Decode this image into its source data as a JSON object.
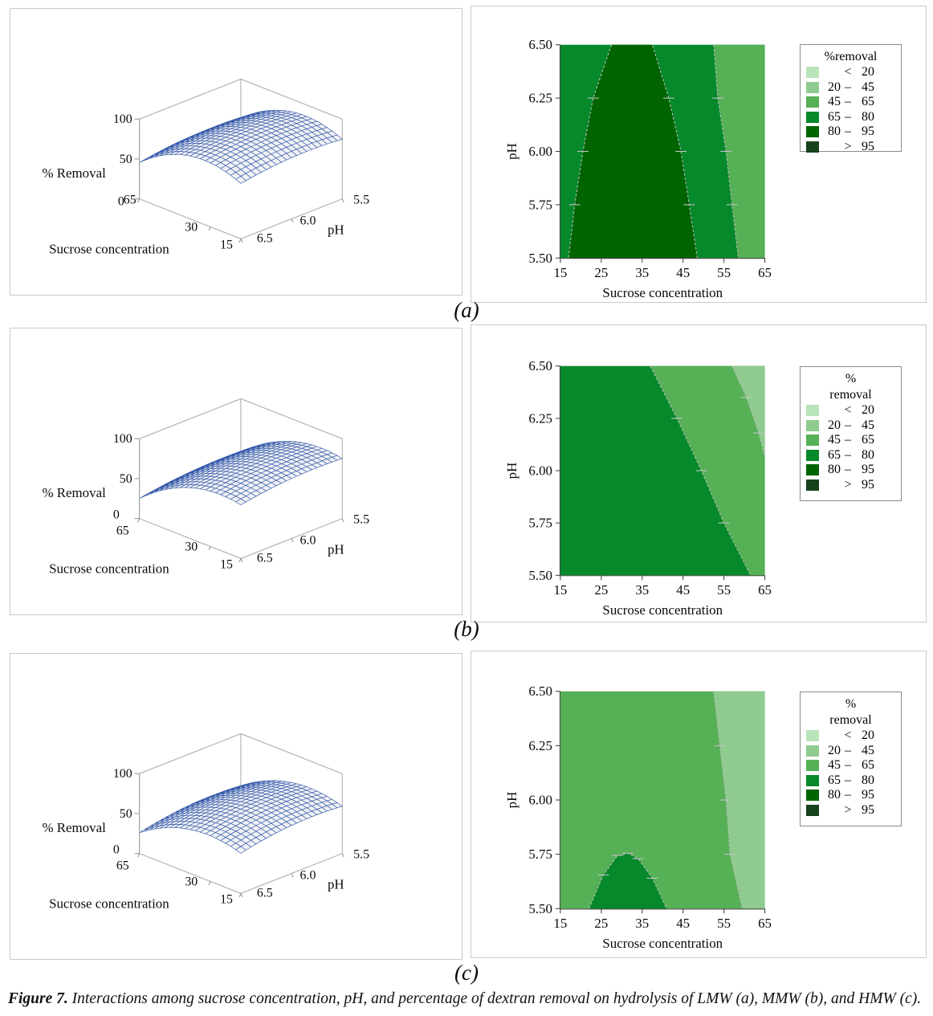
{
  "figure": {
    "caption_label": "Figure 7.",
    "caption_text": " Interactions among sucrose concentration, pH, and percentage of dextran removal on hydrolysis of LMW (a), MMW (b), and HMW (c)."
  },
  "band_colors": {
    "lt20": "#b9e3b9",
    "20-45": "#8fcb8f",
    "45-65": "#56b056",
    "65-80": "#06892b",
    "80-95": "#006400",
    "gt95": "#17421d"
  },
  "legend_bands": [
    {
      "key": "lt20",
      "lo": "",
      "op": "<",
      "hi": "20"
    },
    {
      "key": "20-45",
      "lo": "20",
      "op": "–",
      "hi": "45"
    },
    {
      "key": "45-65",
      "lo": "45",
      "op": "–",
      "hi": "65"
    },
    {
      "key": "65-80",
      "lo": "65",
      "op": "–",
      "hi": "80"
    },
    {
      "key": "80-95",
      "lo": "80",
      "op": "–",
      "hi": "95"
    },
    {
      "key": "gt95",
      "lo": "",
      "op": ">",
      "hi": "95"
    }
  ],
  "chart_data": [
    {
      "label": "(a)",
      "sample": "LMW",
      "surface": {
        "type": "surface3d",
        "zlabel": "% Removal",
        "xlabel": "Sucrose concentration",
        "ylabel": "pH",
        "zticks": [
          100,
          50,
          0
        ],
        "xticks": [
          "65",
          "30",
          "15"
        ],
        "yticks": [
          "6.5",
          "6.0",
          "5.5"
        ],
        "x_range": [
          15,
          65
        ],
        "y_range": [
          5.5,
          6.5
        ],
        "z_range": [
          0,
          100
        ],
        "model": {
          "z0": 88,
          "s0": 33,
          "as": 0.034,
          "p0": 5.85,
          "ap": 18
        },
        "mesh_color": "#2f55a8"
      },
      "contour": {
        "type": "contour",
        "xlabel": "Sucrose concentration",
        "ylabel": "pH",
        "xticks": [
          "15",
          "25",
          "35",
          "45",
          "55",
          "65"
        ],
        "yticks": [
          "5.50",
          "5.75",
          "6.00",
          "6.25",
          "6.50"
        ],
        "x_range": [
          15,
          65
        ],
        "y_range": [
          5.5,
          6.5
        ],
        "legend_title": [
          "%removal"
        ],
        "base_band": "65-80",
        "regions": [
          {
            "band": "45-65",
            "polygon": [
              [
                52.5,
                6.5
              ],
              [
                53.5,
                6.25
              ],
              [
                55.5,
                6.0
              ],
              [
                57,
                5.75
              ],
              [
                58.5,
                5.5
              ],
              [
                65,
                5.5
              ],
              [
                65,
                6.5
              ]
            ],
            "boundaries": [
              [
                0,
                4
              ]
            ]
          },
          {
            "band": "80-95",
            "polygon": [
              [
                27.5,
                6.5
              ],
              [
                23,
                6.25
              ],
              [
                20.5,
                6.0
              ],
              [
                18.5,
                5.75
              ],
              [
                17,
                5.5
              ],
              [
                48.5,
                5.5
              ],
              [
                46.5,
                5.75
              ],
              [
                44.5,
                6.0
              ],
              [
                41.5,
                6.25
              ],
              [
                37.5,
                6.5
              ]
            ],
            "boundaries": [
              [
                0,
                4
              ],
              [
                5,
                9
              ]
            ]
          }
        ]
      }
    },
    {
      "label": "(b)",
      "sample": "MMW",
      "surface": {
        "type": "surface3d",
        "zlabel": "% Removal",
        "xlabel": "Sucrose concentration",
        "ylabel": "pH",
        "zticks": [
          100,
          50,
          0
        ],
        "xticks": [
          "65",
          "30",
          "15"
        ],
        "yticks": [
          "6.5",
          "6.0",
          "5.5"
        ],
        "x_range": [
          15,
          65
        ],
        "y_range": [
          5.5,
          6.5
        ],
        "z_range": [
          0,
          100
        ],
        "model": {
          "z0": 79,
          "s0": 25,
          "as": 0.028,
          "p0": 5.75,
          "ap": 16
        },
        "mesh_color": "#2f55a8"
      },
      "contour": {
        "type": "contour",
        "xlabel": "Sucrose concentration",
        "ylabel": "pH",
        "xticks": [
          "15",
          "25",
          "35",
          "45",
          "55",
          "65"
        ],
        "yticks": [
          "5.50",
          "5.75",
          "6.00",
          "6.25",
          "6.50"
        ],
        "x_range": [
          15,
          65
        ],
        "y_range": [
          5.5,
          6.5
        ],
        "legend_title": [
          "%",
          "removal"
        ],
        "base_band": "65-80",
        "regions": [
          {
            "band": "45-65",
            "polygon": [
              [
                37,
                6.5
              ],
              [
                43.5,
                6.25
              ],
              [
                49.5,
                6.0
              ],
              [
                55,
                5.75
              ],
              [
                61.5,
                5.5
              ],
              [
                65,
                5.5
              ],
              [
                65,
                6.5
              ]
            ],
            "boundaries": [
              [
                0,
                4
              ]
            ]
          },
          {
            "band": "20-45",
            "polygon": [
              [
                57,
                6.5
              ],
              [
                60.5,
                6.35
              ],
              [
                63.5,
                6.18
              ],
              [
                65,
                6.07
              ],
              [
                65,
                6.5
              ]
            ],
            "boundaries": [
              [
                0,
                3
              ]
            ]
          }
        ]
      }
    },
    {
      "label": "(c)",
      "sample": "HMW",
      "surface": {
        "type": "surface3d",
        "zlabel": "% Removal",
        "xlabel": "Sucrose concentration",
        "ylabel": "pH",
        "zticks": [
          100,
          50,
          0
        ],
        "xticks": [
          "65",
          "30",
          "15"
        ],
        "yticks": [
          "6.5",
          "6.0",
          "5.5"
        ],
        "x_range": [
          15,
          65
        ],
        "y_range": [
          5.5,
          6.5
        ],
        "z_range": [
          0,
          100
        ],
        "model": {
          "z0": 68,
          "s0": 31,
          "as": 0.027,
          "p0": 5.8,
          "ap": 22
        },
        "mesh_color": "#2f55a8"
      },
      "contour": {
        "type": "contour",
        "xlabel": "Sucrose concentration",
        "ylabel": "pH",
        "xticks": [
          "15",
          "25",
          "35",
          "45",
          "55",
          "65"
        ],
        "yticks": [
          "5.50",
          "5.75",
          "6.00",
          "6.25",
          "6.50"
        ],
        "x_range": [
          15,
          65
        ],
        "y_range": [
          5.5,
          6.5
        ],
        "legend_title": [
          "%",
          "removal"
        ],
        "base_band": "45-65",
        "regions": [
          {
            "band": "65-80",
            "polygon": [
              [
                22,
                5.5
              ],
              [
                25.5,
                5.655
              ],
              [
                29,
                5.745
              ],
              [
                31.5,
                5.755
              ],
              [
                34,
                5.73
              ],
              [
                37.5,
                5.64
              ],
              [
                41,
                5.5
              ]
            ],
            "boundaries": [
              [
                0,
                6
              ]
            ]
          },
          {
            "band": "20-45",
            "polygon": [
              [
                52.5,
                6.5
              ],
              [
                54,
                6.25
              ],
              [
                55.5,
                6.0
              ],
              [
                56.5,
                5.75
              ],
              [
                59.5,
                5.5
              ],
              [
                65,
                5.5
              ],
              [
                65,
                6.5
              ]
            ],
            "boundaries": [
              [
                0,
                4
              ]
            ]
          }
        ]
      }
    }
  ]
}
